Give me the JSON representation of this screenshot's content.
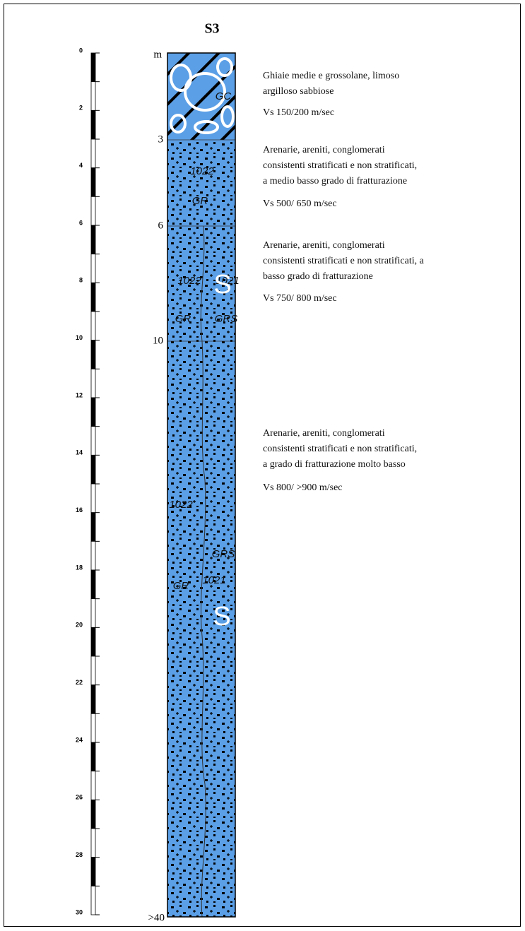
{
  "title": "S3",
  "depth_scale": {
    "labels": [
      "0",
      "2",
      "4",
      "6",
      "8",
      "10",
      "12",
      "14",
      "16",
      "18",
      "20",
      "22",
      "24",
      "26",
      "28",
      "30"
    ]
  },
  "column_depths": {
    "top": "m",
    "marks": [
      "3",
      "6",
      "10"
    ],
    "bottom": ">40"
  },
  "layers": [
    {
      "codes": [
        "GC"
      ],
      "description": [
        "Ghiaie medie e grossolane, limoso",
        "argilloso sabbiose"
      ],
      "vs": "Vs 150/200 m/sec"
    },
    {
      "codes": [
        "1022",
        "GR"
      ],
      "description": [
        "Arenarie, areniti, conglomerati",
        "consistenti stratificati e non stratificati,",
        "a medio basso grado di fratturazione"
      ],
      "vs": "Vs 500/ 650 m/sec"
    },
    {
      "codes": [
        "1022",
        "1021",
        "S",
        "GR",
        "GRS"
      ],
      "description": [
        "Arenarie, areniti, conglomerati",
        "consistenti stratificati e non stratificati, a",
        "basso grado di fratturazione"
      ],
      "vs": "Vs 750/ 800 m/sec"
    },
    {
      "codes": [
        "1022",
        "GRS",
        "1021",
        "GR",
        "S"
      ],
      "description": [
        "Arenarie, areniti, conglomerati",
        "consistenti stratificati e non stratificati,",
        "a grado di fratturazione molto basso"
      ],
      "vs": "Vs 800/ >900 m/sec"
    }
  ]
}
